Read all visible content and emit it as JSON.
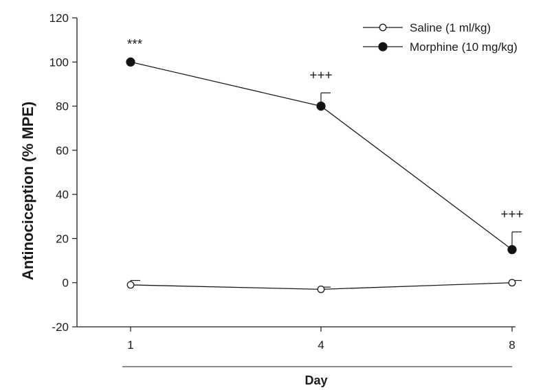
{
  "chart_data": {
    "type": "line",
    "xlabel": "Day",
    "ylabel": "Antinociception (% MPE)",
    "x": [
      1,
      4,
      8
    ],
    "x_tick_labels": [
      "1",
      "4",
      "8"
    ],
    "ylim": [
      -20,
      120
    ],
    "y_ticks": [
      -20,
      0,
      20,
      40,
      60,
      80,
      100,
      120
    ],
    "y_tick_labels": [
      "-20",
      "0",
      "20",
      "40",
      "60",
      "80",
      "100",
      "120"
    ],
    "grid": false,
    "legend_position": "top-right",
    "series": [
      {
        "name": "Saline (1 ml/kg)",
        "marker": "open-circle",
        "values": [
          -1,
          -3,
          0
        ],
        "error_upper": [
          1,
          -2,
          1
        ]
      },
      {
        "name": "Morphine (10 mg/kg)",
        "marker": "filled-circle",
        "values": [
          100,
          80,
          15
        ],
        "error_upper": [
          100,
          86,
          23
        ]
      }
    ],
    "annotations": [
      {
        "x": 1,
        "series": 1,
        "text": "***"
      },
      {
        "x": 4,
        "series": 1,
        "text": "+++"
      },
      {
        "x": 8,
        "series": 1,
        "text": "+++"
      }
    ]
  },
  "colors": {
    "line": "#1a1a1a",
    "marker_fill_closed": "#111111",
    "marker_fill_open": "#ffffff"
  }
}
